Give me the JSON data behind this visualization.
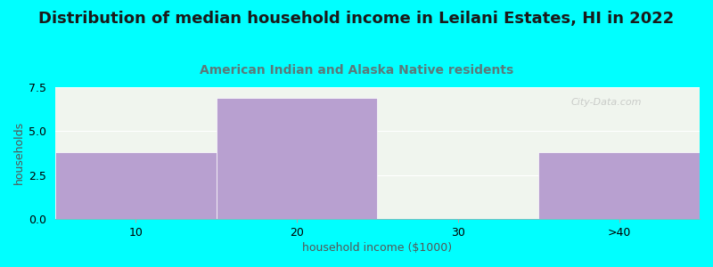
{
  "title": "Distribution of median household income in Leilani Estates, HI in 2022",
  "subtitle": "American Indian and Alaska Native residents",
  "xlabel": "household income ($1000)",
  "ylabel": "households",
  "bin_edges": [
    0,
    1,
    2,
    3,
    4
  ],
  "tick_labels": [
    "10",
    "20",
    "30",
    ">40"
  ],
  "values": [
    3.8,
    6.9,
    0,
    3.8
  ],
  "bar_color": "#b8a0d0",
  "ylim": [
    0,
    7.5
  ],
  "yticks": [
    0,
    2.5,
    5,
    7.5
  ],
  "background_color": "#00ffff",
  "plot_bg_color": "#f0f5ee",
  "title_color": "#1a1a1a",
  "subtitle_color": "#5a7a7a",
  "title_fontsize": 13,
  "subtitle_fontsize": 10,
  "axis_label_fontsize": 9,
  "tick_fontsize": 9,
  "watermark": "City-Data.com"
}
